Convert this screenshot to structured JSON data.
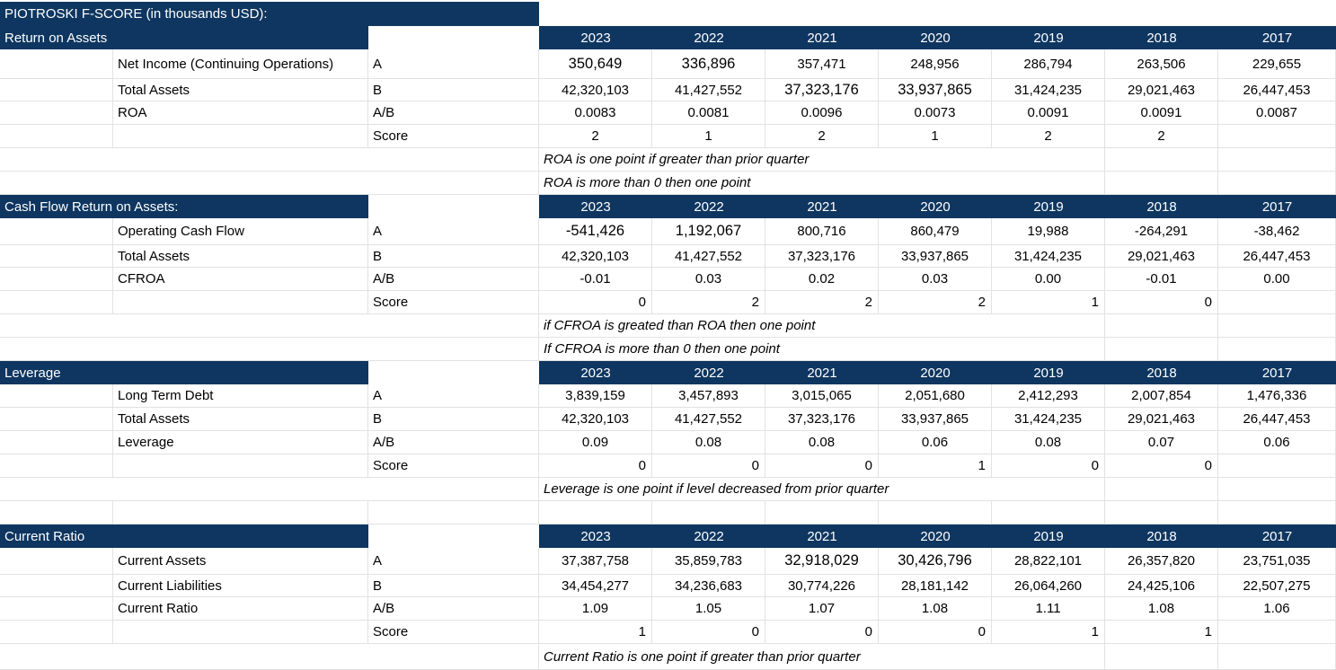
{
  "title": "PIOTROSKI F-SCORE (in thousands USD):",
  "years": [
    "2023",
    "2022",
    "2021",
    "2020",
    "2019",
    "2018",
    "2017"
  ],
  "sections": [
    {
      "name": "Return on Assets",
      "rows": [
        {
          "label": "Net Income (Continuing Operations)",
          "code": "A",
          "values": [
            "350,649",
            "336,896",
            "357,471",
            "248,956",
            "286,794",
            "263,506",
            "229,655"
          ]
        },
        {
          "label": "Total Assets",
          "code": "B",
          "values": [
            "42,320,103",
            "41,427,552",
            "37,323,176",
            "33,937,865",
            "31,424,235",
            "29,021,463",
            "26,447,453"
          ]
        },
        {
          "label": "ROA",
          "code": "A/B",
          "values": [
            "0.0083",
            "0.0081",
            "0.0096",
            "0.0073",
            "0.0091",
            "0.0091",
            "0.0087"
          ]
        }
      ],
      "score_label": "Score",
      "scores": [
        "2",
        "1",
        "2",
        "1",
        "2",
        "2",
        ""
      ],
      "notes": [
        "ROA is one point if greater than prior quarter",
        "ROA is more than 0 then one point"
      ]
    },
    {
      "name": "Cash Flow Return on Assets:",
      "rows": [
        {
          "label": "Operating Cash Flow",
          "code": "A",
          "values": [
            "-541,426",
            "1,192,067",
            "800,716",
            "860,479",
            "19,988",
            "-264,291",
            "-38,462"
          ]
        },
        {
          "label": "Total Assets",
          "code": "B",
          "values": [
            "42,320,103",
            "41,427,552",
            "37,323,176",
            "33,937,865",
            "31,424,235",
            "29,021,463",
            "26,447,453"
          ]
        },
        {
          "label": "CFROA",
          "code": "A/B",
          "values": [
            "-0.01",
            "0.03",
            "0.02",
            "0.03",
            "0.00",
            "-0.01",
            "0.00"
          ]
        }
      ],
      "score_label": "Score",
      "scores": [
        "0",
        "2",
        "2",
        "2",
        "1",
        "0",
        ""
      ],
      "notes": [
        "if CFROA is greated than ROA then one point",
        "If CFROA is more than 0 then one point"
      ]
    },
    {
      "name": "Leverage",
      "rows": [
        {
          "label": "Long Term Debt",
          "code": "A",
          "values": [
            "3,839,159",
            "3,457,893",
            "3,015,065",
            "2,051,680",
            "2,412,293",
            "2,007,854",
            "1,476,336"
          ]
        },
        {
          "label": "Total Assets",
          "code": "B",
          "values": [
            "42,320,103",
            "41,427,552",
            "37,323,176",
            "33,937,865",
            "31,424,235",
            "29,021,463",
            "26,447,453"
          ]
        },
        {
          "label": "Leverage",
          "code": "A/B",
          "values": [
            "0.09",
            "0.08",
            "0.08",
            "0.06",
            "0.08",
            "0.07",
            "0.06"
          ]
        }
      ],
      "score_label": "Score",
      "scores": [
        "0",
        "0",
        "0",
        "1",
        "0",
        "0",
        ""
      ],
      "notes": [
        "Leverage is one point if level decreased from prior quarter"
      ]
    },
    {
      "name": "Current Ratio",
      "rows": [
        {
          "label": "Current Assets",
          "code": "A",
          "values": [
            "37,387,758",
            "35,859,783",
            "32,918,029",
            "30,426,796",
            "28,822,101",
            "26,357,820",
            "23,751,035"
          ]
        },
        {
          "label": "Current Liabilities",
          "code": "B",
          "values": [
            "34,454,277",
            "34,236,683",
            "30,774,226",
            "28,181,142",
            "26,064,260",
            "24,425,106",
            "22,507,275"
          ]
        },
        {
          "label": "Current Ratio",
          "code": "A/B",
          "values": [
            "1.09",
            "1.05",
            "1.07",
            "1.08",
            "1.11",
            "1.08",
            "1.06"
          ]
        }
      ],
      "score_label": "Score",
      "scores": [
        "1",
        "0",
        "0",
        "0",
        "1",
        "1",
        ""
      ],
      "notes": [
        "Current Ratio is one point if greater than prior quarter"
      ]
    }
  ]
}
